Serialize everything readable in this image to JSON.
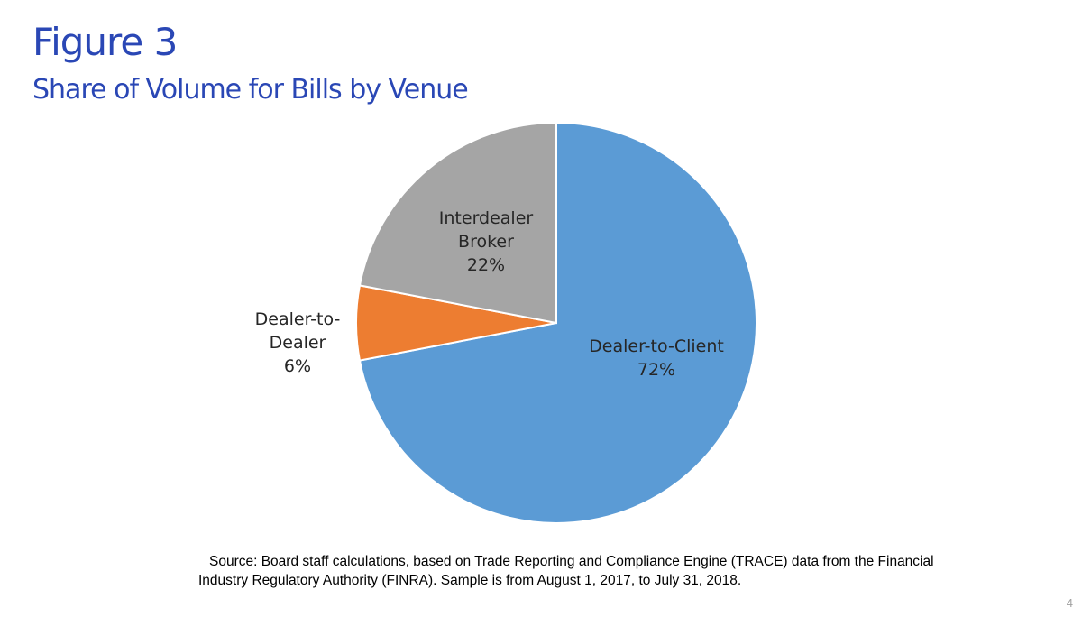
{
  "chart_data": {
    "type": "pie",
    "title": "Figure 3",
    "subtitle": "Share of Volume for Bills by Venue",
    "categories": [
      "Dealer-to-Client",
      "Dealer-to-Dealer",
      "Interdealer Broker"
    ],
    "values": [
      72,
      6,
      22
    ],
    "value_labels": [
      "72%",
      "6%",
      "22%"
    ],
    "colors": [
      "#5b9bd5",
      "#ed7d31",
      "#a5a5a5"
    ],
    "note": "Source: Board staff calculations, based on Trade Reporting and Compliance Engine (TRACE) data from the Financial Industry Regulatory Authority (FINRA). Sample is from August 1, 2017, to July 31, 2018.",
    "page_number": "4"
  }
}
